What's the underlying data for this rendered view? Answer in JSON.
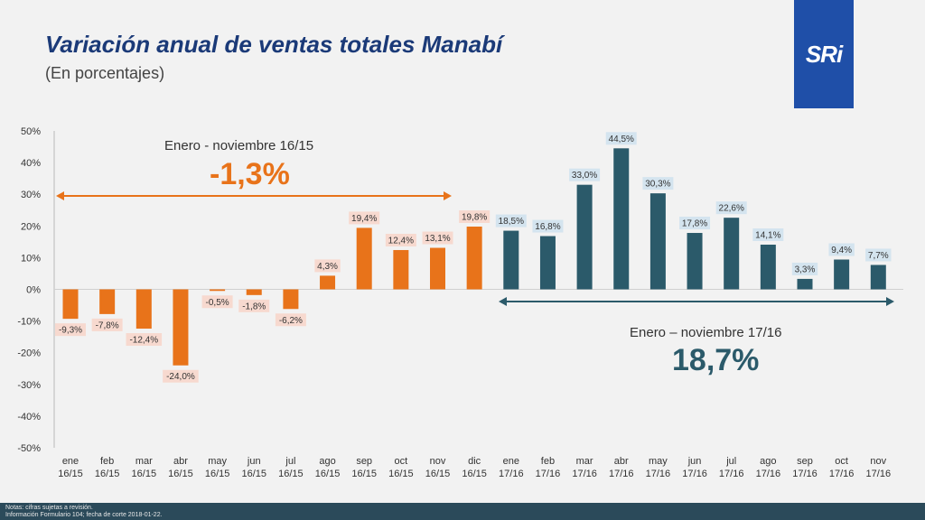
{
  "header": {
    "title": "Variación anual de ventas totales Manabí",
    "subtitle": "(En porcentajes)",
    "logo_text": "SRi"
  },
  "annotations": {
    "left_label": "Enero - noviembre 16/15",
    "left_value": "-1,3%",
    "right_label": "Enero – noviembre 17/16",
    "right_value": "18,7%"
  },
  "footer": {
    "line1": "Notas: cifras sujetas a revisión.",
    "line2": "Información Formulario 104; fecha de corte 2018-01-22."
  },
  "colors": {
    "orange": "#e8731a",
    "teal": "#2b5a6a",
    "orange_label_bg": "#f7d9cf",
    "teal_label_bg": "#d4e4ef"
  },
  "chart_data": {
    "type": "bar",
    "title": "Variación anual de ventas totales Manabí",
    "ylabel": "",
    "xlabel": "",
    "ylim": [
      -50,
      50
    ],
    "yticks": [
      50,
      40,
      30,
      20,
      10,
      0,
      -10,
      -20,
      -30,
      -40,
      -50
    ],
    "ytick_labels": [
      "50%",
      "40%",
      "30%",
      "20%",
      "10%",
      "0%",
      "-10%",
      "-20%",
      "-30%",
      "-40%",
      "-50%"
    ],
    "categories": [
      [
        "ene",
        "16/15"
      ],
      [
        "feb",
        "16/15"
      ],
      [
        "mar",
        "16/15"
      ],
      [
        "abr",
        "16/15"
      ],
      [
        "may",
        "16/15"
      ],
      [
        "jun",
        "16/15"
      ],
      [
        "jul",
        "16/15"
      ],
      [
        "ago",
        "16/15"
      ],
      [
        "sep",
        "16/15"
      ],
      [
        "oct",
        "16/15"
      ],
      [
        "nov",
        "16/15"
      ],
      [
        "dic",
        "16/15"
      ],
      [
        "ene",
        "17/16"
      ],
      [
        "feb",
        "17/16"
      ],
      [
        "mar",
        "17/16"
      ],
      [
        "abr",
        "17/16"
      ],
      [
        "may",
        "17/16"
      ],
      [
        "jun",
        "17/16"
      ],
      [
        "jul",
        "17/16"
      ],
      [
        "ago",
        "17/16"
      ],
      [
        "sep",
        "17/16"
      ],
      [
        "oct",
        "17/16"
      ],
      [
        "nov",
        "17/16"
      ]
    ],
    "values": [
      -9.3,
      -7.8,
      -12.4,
      -24.0,
      -0.5,
      -1.8,
      -6.2,
      4.3,
      19.4,
      12.4,
      13.1,
      19.8,
      18.5,
      16.8,
      33.0,
      44.5,
      30.3,
      17.8,
      22.6,
      14.1,
      3.3,
      9.4,
      7.7
    ],
    "value_labels": [
      "-9,3%",
      "-7,8%",
      "-12,4%",
      "-24,0%",
      "-0,5%",
      "-1,8%",
      "-6,2%",
      "4,3%",
      "19,4%",
      "12,4%",
      "13,1%",
      "19,8%",
      "18,5%",
      "16,8%",
      "33,0%",
      "44,5%",
      "30,3%",
      "17,8%",
      "22,6%",
      "14,1%",
      "3,3%",
      "9,4%",
      "7,7%"
    ],
    "series_groups": [
      {
        "name": "16/15",
        "start": 0,
        "end": 11,
        "color": "#e8731a"
      },
      {
        "name": "17/16",
        "start": 12,
        "end": 22,
        "color": "#2b5a6a"
      }
    ]
  }
}
